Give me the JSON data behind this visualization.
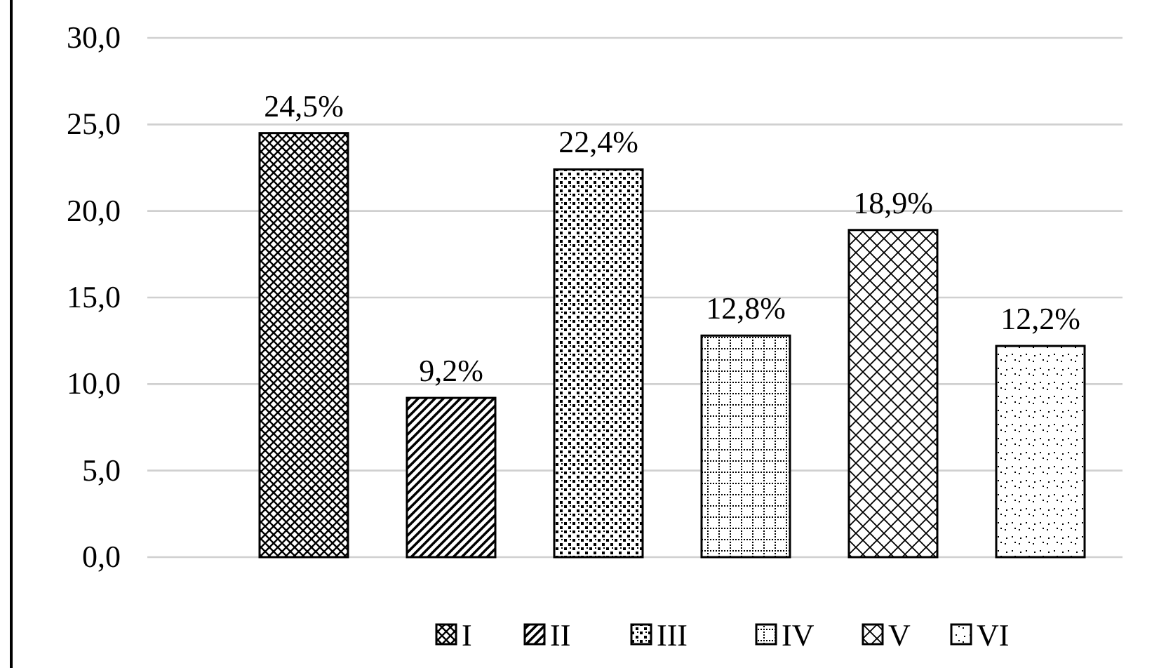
{
  "chart_data": {
    "type": "bar",
    "categories": [
      null
    ],
    "series": [
      {
        "name": "I",
        "color": "#000000",
        "values": [
          24.5
        ],
        "value_labels": [
          "24,5%"
        ]
      },
      {
        "name": "II",
        "color": "#000000",
        "values": [
          9.2
        ],
        "value_labels": [
          "9,2%"
        ]
      },
      {
        "name": "III",
        "color": "#000000",
        "values": [
          22.4
        ],
        "value_labels": [
          "22,4%"
        ]
      },
      {
        "name": "IV",
        "color": "#000000",
        "values": [
          12.8
        ],
        "value_labels": [
          "12,8%"
        ]
      },
      {
        "name": "V",
        "color": "#000000",
        "values": [
          18.9
        ],
        "value_labels": [
          "18,9%"
        ]
      },
      {
        "name": "VI",
        "color": "#000000",
        "values": [
          12.2
        ],
        "value_labels": [
          "12,2%"
        ]
      }
    ],
    "ylim": [
      0,
      30
    ],
    "yticks": [
      {
        "value": 0,
        "label": "0,0"
      },
      {
        "value": 5,
        "label": "5,0"
      },
      {
        "value": 10,
        "label": "10,0"
      },
      {
        "value": 15,
        "label": "15,0"
      },
      {
        "value": 20,
        "label": "20,0"
      },
      {
        "value": 25,
        "label": "25,0"
      },
      {
        "value": 30,
        "label": "30,0"
      }
    ],
    "grid": "y",
    "legend": "bottom"
  }
}
